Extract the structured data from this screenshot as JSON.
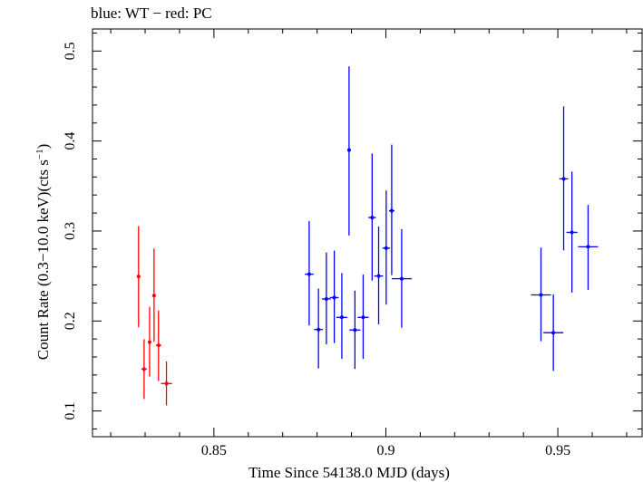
{
  "chart_data": {
    "type": "scatter",
    "title": "blue: WT − red: PC",
    "xlabel": "Time Since 54138.0 MJD (days)",
    "ylabel_main": "Count Rate (0.3−10.0 keV)(cts s",
    "ylabel_sup": "−1",
    "ylabel_end": ")",
    "xlim": [
      0.8147,
      0.9745
    ],
    "ylim": [
      0.0714,
      0.5245
    ],
    "xticks": [
      0.85,
      0.9,
      0.95
    ],
    "xtick_labels": [
      "0.85",
      "0.9",
      "0.95"
    ],
    "yticks": [
      0.1,
      0.2,
      0.3,
      0.4,
      0.5
    ],
    "ytick_labels": [
      "0.1",
      "0.2",
      "0.3",
      "0.4",
      "0.5"
    ],
    "grid": false,
    "series": [
      {
        "color": "#ff0000",
        "points": [
          {
            "x": 0.8281,
            "y": 0.2495,
            "xerr": 0.0005,
            "yerr": [
              0.0565,
              0.056
            ]
          },
          {
            "x": 0.8297,
            "y": 0.1466,
            "xerr": 0.0008,
            "yerr": [
              0.0333,
              0.0332
            ]
          },
          {
            "x": 0.8313,
            "y": 0.1765,
            "xerr": 0.0005,
            "yerr": [
              0.0382,
              0.0391
            ]
          },
          {
            "x": 0.8326,
            "y": 0.2282,
            "xerr": 0.0005,
            "yerr": [
              0.0512,
              0.0523
            ]
          },
          {
            "x": 0.8339,
            "y": 0.173,
            "xerr": 0.0008,
            "yerr": [
              0.0397,
              0.0386
            ]
          },
          {
            "x": 0.8362,
            "y": 0.1305,
            "xerr": 0.0016,
            "yerr": [
              0.0243,
              0.0246
            ]
          }
        ]
      },
      {
        "color": "#0000ff",
        "points": [
          {
            "x": 0.8777,
            "y": 0.252,
            "xerr": 0.0013,
            "yerr": [
              0.057,
              0.059
            ]
          },
          {
            "x": 0.8804,
            "y": 0.1905,
            "xerr": 0.0013,
            "yerr": [
              0.0432,
              0.0455
            ]
          },
          {
            "x": 0.8827,
            "y": 0.2245,
            "xerr": 0.0013,
            "yerr": [
              0.0504,
              0.0515
            ]
          },
          {
            "x": 0.885,
            "y": 0.226,
            "xerr": 0.0013,
            "yerr": [
              0.0506,
              0.0523
            ]
          },
          {
            "x": 0.8872,
            "y": 0.204,
            "xerr": 0.0016,
            "yerr": [
              0.0461,
              0.0493
            ]
          },
          {
            "x": 0.8893,
            "y": 0.39,
            "xerr": 0.0005,
            "yerr": [
              0.095,
              0.093
            ]
          },
          {
            "x": 0.891,
            "y": 0.19,
            "xerr": 0.0016,
            "yerr": [
              0.0433,
              0.0437
            ]
          },
          {
            "x": 0.8934,
            "y": 0.204,
            "xerr": 0.0016,
            "yerr": [
              0.0461,
              0.0476
            ]
          },
          {
            "x": 0.896,
            "y": 0.315,
            "xerr": 0.0011,
            "yerr": [
              0.07,
              0.0712
            ]
          },
          {
            "x": 0.8979,
            "y": 0.25,
            "xerr": 0.0013,
            "yerr": [
              0.0538,
              0.055
            ]
          },
          {
            "x": 0.9001,
            "y": 0.281,
            "xerr": 0.0011,
            "yerr": [
              0.0629,
              0.064
            ]
          },
          {
            "x": 0.9017,
            "y": 0.3225,
            "xerr": 0.0008,
            "yerr": [
              0.0715,
              0.0735
            ]
          },
          {
            "x": 0.9046,
            "y": 0.247,
            "xerr": 0.0029,
            "yerr": [
              0.0545,
              0.055
            ]
          },
          {
            "x": 0.9451,
            "y": 0.229,
            "xerr": 0.0029,
            "yerr": [
              0.0515,
              0.0525
            ]
          },
          {
            "x": 0.9487,
            "y": 0.187,
            "xerr": 0.0029,
            "yerr": [
              0.0425,
              0.0425
            ]
          },
          {
            "x": 0.9517,
            "y": 0.358,
            "xerr": 0.0013,
            "yerr": [
              0.0795,
              0.0805
            ]
          },
          {
            "x": 0.9541,
            "y": 0.2985,
            "xerr": 0.0016,
            "yerr": [
              0.067,
              0.0675
            ]
          },
          {
            "x": 0.9588,
            "y": 0.2825,
            "xerr": 0.0029,
            "yerr": [
              0.048,
              0.0465
            ]
          }
        ]
      }
    ]
  }
}
